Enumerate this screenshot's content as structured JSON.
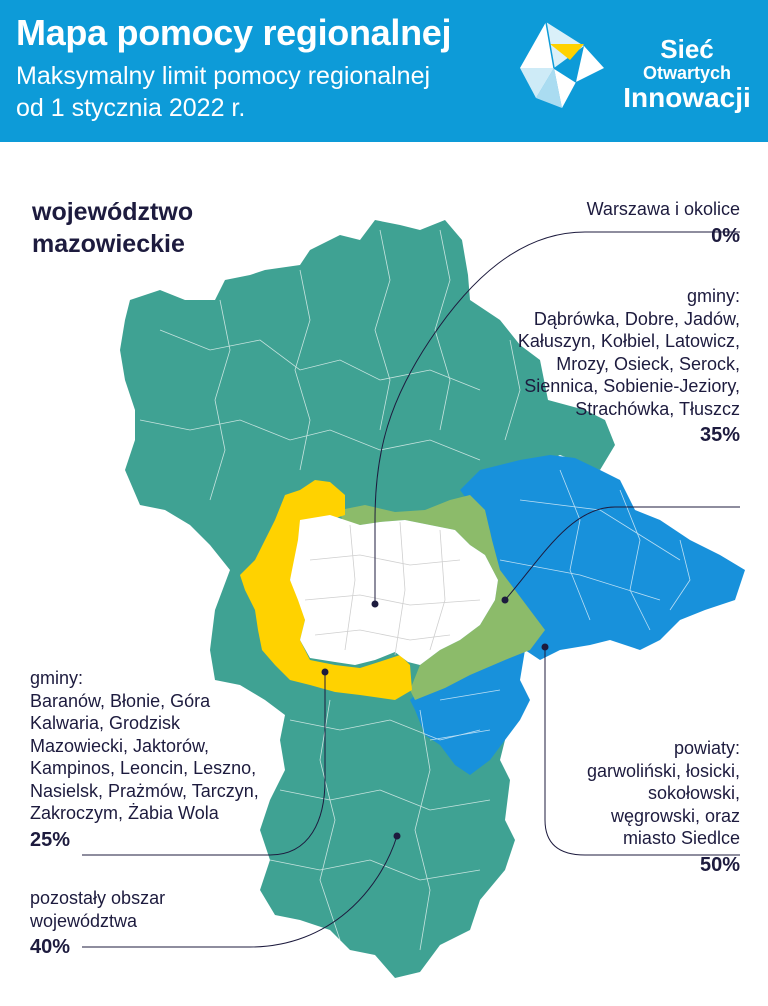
{
  "header": {
    "title": "Mapa pomocy regionalnej",
    "subtitle": "Maksymalny limit pomocy regionalnej od 1 stycznia 2022 r."
  },
  "logo": {
    "line1": "Sieć",
    "line2": "Otwartych",
    "line3": "Innowacji"
  },
  "region_title": "województwo mazowieckie",
  "colors": {
    "header_bg": "#0d9bd8",
    "zone_0": "#ffffff",
    "zone_25": "#ffd200",
    "zone_35": "#8cbb6a",
    "zone_40": "#3fa293",
    "zone_50": "#1891db",
    "text": "#1d1b3e"
  },
  "annotations": {
    "warszawa": {
      "label": "Warszawa i okolice",
      "value": "0%"
    },
    "zone35": {
      "intro": "gminy:",
      "names": "Dąbrówka, Dobre, Jadów, Kałuszyn, Kołbiel, Latowicz, Mrozy, Osieck, Serock, Siennica, Sobienie-Jeziory, Strachówka, Tłuszcz",
      "value": "35%"
    },
    "zone50": {
      "intro": "powiaty:",
      "names": "garwoliński, łosicki, sokołowski, węgrowski, oraz miasto Siedlce",
      "value": "50%"
    },
    "zone25": {
      "intro": "gminy:",
      "names": "Baranów, Błonie, Góra Kalwaria, Grodzisk Mazowiecki, Jaktorów, Kampinos, Leoncin, Leszno, Nasielsk, Prażmów, Tarczyn, Zakroczym, Żabia Wola",
      "value": "25%"
    },
    "zone40": {
      "label": "pozostały obszar województwa",
      "value": "40%"
    }
  }
}
